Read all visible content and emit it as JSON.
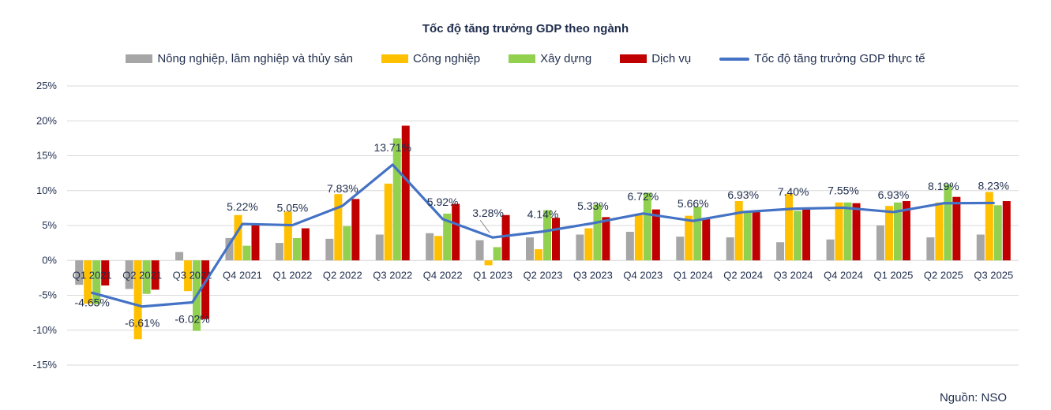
{
  "chart_data": {
    "type": "bar+line",
    "title": "Tốc độ tăng trưởng GDP theo ngành",
    "categories": [
      "Q1 2021",
      "Q2 2021",
      "Q3 2021",
      "Q4 2021",
      "Q1 2022",
      "Q2 2022",
      "Q3 2022",
      "Q4 2022",
      "Q1 2023",
      "Q2 2023",
      "Q3 2023",
      "Q4 2023",
      "Q1 2024",
      "Q2 2024",
      "Q3 2024",
      "Q4 2024",
      "Q1 2025",
      "Q2 2025",
      "Q3 2025"
    ],
    "series": [
      {
        "name": "Nông nghiệp, lâm nghiệp và thủy sản",
        "kind": "bar",
        "color": "#a6a6a6",
        "values": [
          -3.5,
          -4.1,
          1.2,
          3.2,
          2.5,
          3.1,
          3.7,
          3.9,
          2.9,
          3.3,
          3.7,
          4.1,
          3.4,
          3.3,
          2.6,
          3.0,
          5.0,
          3.3,
          3.7
        ]
      },
      {
        "name": "Công nghiệp",
        "kind": "bar",
        "color": "#ffc000",
        "values": [
          -6.2,
          -11.3,
          -4.4,
          6.5,
          7.0,
          9.5,
          11.0,
          3.5,
          -0.7,
          1.6,
          4.6,
          6.6,
          6.4,
          8.5,
          9.5,
          8.3,
          7.8,
          8.3,
          9.8
        ]
      },
      {
        "name": "Xây dựng",
        "kind": "bar",
        "color": "#92d050",
        "values": [
          -6.3,
          -4.8,
          -10.1,
          2.1,
          3.2,
          4.9,
          17.5,
          6.7,
          1.9,
          7.2,
          8.0,
          9.7,
          7.7,
          7.1,
          7.1,
          8.3,
          8.3,
          10.9,
          7.9
        ]
      },
      {
        "name": "Dịch vụ",
        "kind": "bar",
        "color": "#c00000",
        "values": [
          -3.6,
          -4.2,
          -8.4,
          5.0,
          4.6,
          8.8,
          19.3,
          8.1,
          6.5,
          6.1,
          6.2,
          7.3,
          6.1,
          7.0,
          7.5,
          8.2,
          8.5,
          9.1,
          8.5
        ]
      },
      {
        "name": "Tốc độ tăng trưởng GDP thực tế",
        "kind": "line",
        "color": "#4472c4",
        "values": [
          -4.65,
          -6.61,
          -6.02,
          5.22,
          5.05,
          7.83,
          13.71,
          5.92,
          3.28,
          4.14,
          5.33,
          6.72,
          5.66,
          6.93,
          7.4,
          7.55,
          6.93,
          8.19,
          8.23
        ],
        "labels": [
          "-4.65%",
          "-6.61%",
          "-6.02%",
          "5.22%",
          "5.05%",
          "7.83%",
          "13.71%",
          "5.92%",
          "3.28%",
          "4.14%",
          "5.33%",
          "6.72%",
          "5.66%",
          "6.93%",
          "7.40%",
          "7.55%",
          "6.93%",
          "8.19%",
          "8.23%"
        ]
      }
    ],
    "y_ticks": [
      "25%",
      "20%",
      "15%",
      "10%",
      "5%",
      "0%",
      "-5%",
      "-10%",
      "-15%"
    ],
    "ylim": [
      -15,
      25
    ],
    "grid": true,
    "legend_position": "top"
  },
  "source": "Nguồn: NSO"
}
